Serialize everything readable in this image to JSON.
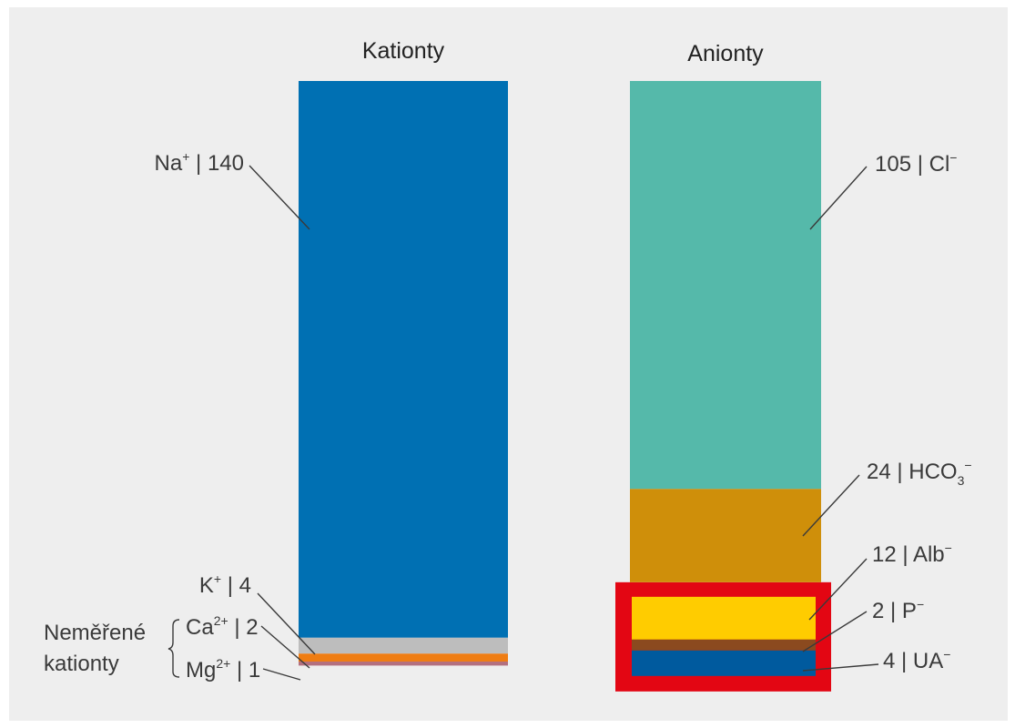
{
  "chart_data": {
    "type": "bar",
    "stacked": true,
    "columns": [
      {
        "title": "Kationty",
        "segments": [
          {
            "ion": "Na",
            "charge": "+",
            "value": 140,
            "label_main": "Na",
            "label_sup": "+",
            "label_rest": " | 140",
            "color": "#0070b3"
          },
          {
            "ion": "K",
            "charge": "+",
            "value": 4,
            "label_main": "K",
            "label_sup": "+",
            "label_rest": " | 4",
            "color": "#bdbdbd"
          },
          {
            "ion": "Ca",
            "charge": "2+",
            "value": 2,
            "label_main": "Ca",
            "label_sup": "2+",
            "label_rest": " | 2",
            "color": "#ef7d13"
          },
          {
            "ion": "Mg",
            "charge": "2+",
            "value": 1,
            "label_main": "Mg",
            "label_sup": "2+",
            "label_rest": " | 1",
            "color": "#b3707f"
          }
        ]
      },
      {
        "title": "Anionty",
        "segments": [
          {
            "ion": "Cl",
            "charge": "−",
            "value": 105,
            "label_main": "105 | Cl",
            "label_sup": "−",
            "color": "#55b9aa"
          },
          {
            "ion": "HCO3",
            "charge": "−",
            "value": 24,
            "label_main": "24 | HCO",
            "label_sub": "3",
            "label_sup": "−",
            "color": "#cf8f0a"
          },
          {
            "ion": "Alb",
            "charge": "−",
            "value": 12,
            "label_main": "12 | Alb",
            "label_sup": "−",
            "color": "#ffcc00"
          },
          {
            "ion": "P",
            "charge": "−",
            "value": 2,
            "label_main": "2 | P",
            "label_sup": "−",
            "color": "#8b4a1f"
          },
          {
            "ion": "UA",
            "charge": "−",
            "value": 4,
            "label_main": "4 | UA",
            "label_sup": "−",
            "color": "#005a9e"
          }
        ],
        "highlight": {
          "segments": [
            "Alb",
            "P",
            "UA"
          ],
          "color": "#e30613"
        }
      }
    ],
    "group_label": {
      "line1": "Neměřené",
      "line2": "kationty",
      "members": [
        "Ca",
        "Mg"
      ]
    }
  }
}
